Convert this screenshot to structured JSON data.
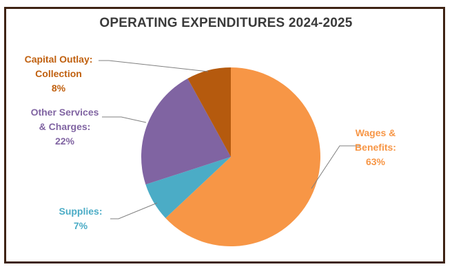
{
  "chart_data": {
    "type": "pie",
    "title": "OPERATING EXPENDITURES 2024-2025",
    "slices": [
      {
        "label": [
          "Wages &",
          "Benefits:"
        ],
        "value": 63,
        "value_label": "63%",
        "color": "#f79646"
      },
      {
        "label": [
          "Supplies:"
        ],
        "value": 7,
        "value_label": "7%",
        "color": "#4bacc6"
      },
      {
        "label": [
          "Other Services",
          "& Charges:"
        ],
        "value": 22,
        "value_label": "22%",
        "color": "#8064a2"
      },
      {
        "label": [
          "Capital Outlay:",
          "Collection"
        ],
        "value": 8,
        "value_label": "8%",
        "color": "#b55a0e"
      }
    ],
    "start_angle": "12 o'clock",
    "direction": "clockwise"
  },
  "colors": {
    "border": "#3e2314",
    "leader_line": "#7f7f7f",
    "title": "#3a3a3a",
    "label_text": [
      "#f79646",
      "#4bacc6",
      "#8064a2",
      "#c0600f"
    ]
  }
}
